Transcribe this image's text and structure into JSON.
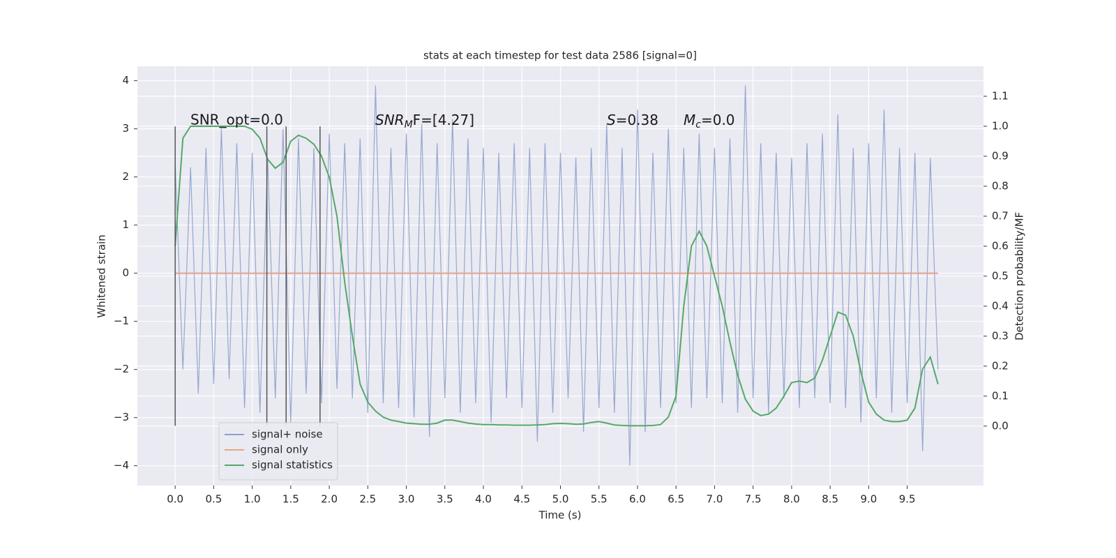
{
  "chart_data": {
    "type": "line",
    "title": "stats at each timestep for test data 2586 [signal=0]",
    "xlabel": "Time (s)",
    "ylabel": "Whitened strain",
    "y2label": "Detection probability/MF",
    "xlim": [
      -0.49,
      10.49
    ],
    "ylim": [
      -4.41,
      4.3
    ],
    "y2lim": [
      -0.198,
      1.2
    ],
    "xticks": [
      {
        "value": 0,
        "label": "0.0"
      },
      {
        "value": 0.5,
        "label": "0.5"
      },
      {
        "value": 1,
        "label": "1.0"
      },
      {
        "value": 1.5,
        "label": "1.5"
      },
      {
        "value": 2,
        "label": "2.0"
      },
      {
        "value": 2.5,
        "label": "2.5"
      },
      {
        "value": 3,
        "label": "3.0"
      },
      {
        "value": 3.5,
        "label": "3.5"
      },
      {
        "value": 4,
        "label": "4.0"
      },
      {
        "value": 4.5,
        "label": "4.5"
      },
      {
        "value": 5,
        "label": "5.0"
      },
      {
        "value": 5.5,
        "label": "5.5"
      },
      {
        "value": 6,
        "label": "6.0"
      },
      {
        "value": 6.5,
        "label": "6.5"
      },
      {
        "value": 7,
        "label": "7.0"
      },
      {
        "value": 7.5,
        "label": "7.5"
      },
      {
        "value": 8,
        "label": "8.0"
      },
      {
        "value": 8.5,
        "label": "8.5"
      },
      {
        "value": 9,
        "label": "9.0"
      },
      {
        "value": 9.5,
        "label": "9.5"
      }
    ],
    "yticks": [
      {
        "value": -4,
        "label": "−4"
      },
      {
        "value": -3,
        "label": "−3"
      },
      {
        "value": -2,
        "label": "−2"
      },
      {
        "value": -1,
        "label": "−1"
      },
      0,
      1,
      2,
      3,
      4
    ],
    "y2ticks": [
      {
        "value": 0,
        "label": "0.0"
      },
      {
        "value": 0.1,
        "label": "0.1"
      },
      {
        "value": 0.2,
        "label": "0.2"
      },
      {
        "value": 0.3,
        "label": "0.3"
      },
      {
        "value": 0.4,
        "label": "0.4"
      },
      {
        "value": 0.5,
        "label": "0.5"
      },
      {
        "value": 0.6,
        "label": "0.6"
      },
      {
        "value": 0.7,
        "label": "0.7"
      },
      {
        "value": 0.8,
        "label": "0.8"
      },
      {
        "value": 0.9,
        "label": "0.9"
      },
      {
        "value": 1,
        "label": "1.0"
      },
      {
        "value": 1.1,
        "label": "1.1"
      }
    ],
    "grid": true,
    "legend": "lower left",
    "x": [
      0,
      0.1,
      0.2,
      0.3,
      0.4,
      0.5,
      0.6,
      0.7,
      0.8,
      0.9,
      1,
      1.1,
      1.2,
      1.3,
      1.4,
      1.5,
      1.6,
      1.7,
      1.8,
      1.9,
      2,
      2.1,
      2.2,
      2.3,
      2.4,
      2.5,
      2.6,
      2.7,
      2.8,
      2.9,
      3,
      3.1,
      3.2,
      3.3,
      3.4,
      3.5,
      3.6,
      3.7,
      3.8,
      3.9,
      4,
      4.1,
      4.2,
      4.3,
      4.4,
      4.5,
      4.6,
      4.7,
      4.8,
      4.9,
      5,
      5.1,
      5.2,
      5.3,
      5.4,
      5.5,
      5.6,
      5.7,
      5.8,
      5.9,
      6,
      6.1,
      6.2,
      6.3,
      6.4,
      6.5,
      6.6,
      6.7,
      6.8,
      6.9,
      7,
      7.1,
      7.2,
      7.3,
      7.4,
      7.5,
      7.6,
      7.7,
      7.8,
      7.9,
      8,
      8.1,
      8.2,
      8.3,
      8.4,
      8.5,
      8.6,
      8.7,
      8.8,
      8.9,
      9,
      9.1,
      9.2,
      9.3,
      9.4,
      9.5,
      9.6,
      9.7,
      9.8,
      9.9
    ],
    "series": [
      {
        "name": "signal+ noise",
        "color": "#8da0cb",
        "values": [
          2.3,
          -2.0,
          2.2,
          -2.5,
          2.6,
          -2.3,
          3.0,
          -2.2,
          2.7,
          -2.8,
          2.5,
          -2.9,
          2.4,
          -2.6,
          3.0,
          -3.1,
          2.8,
          -2.5,
          2.6,
          -2.7,
          2.9,
          -2.4,
          2.7,
          -2.6,
          2.8,
          -2.9,
          3.9,
          -2.7,
          2.6,
          -2.8,
          2.9,
          -3.0,
          3.1,
          -3.4,
          2.7,
          -2.6,
          3.2,
          -2.9,
          2.8,
          -2.7,
          2.6,
          -3.1,
          2.5,
          -2.6,
          2.7,
          -2.8,
          2.6,
          -3.5,
          2.7,
          -2.9,
          2.5,
          -2.6,
          2.4,
          -3.3,
          2.6,
          -2.8,
          3.1,
          -2.9,
          2.6,
          -4.0,
          3.4,
          -3.3,
          2.5,
          -2.8,
          3.0,
          -2.7,
          2.6,
          -2.8,
          2.9,
          -2.6,
          2.6,
          -2.7,
          2.8,
          -2.9,
          3.9,
          -2.6,
          2.7,
          -2.9,
          2.5,
          -2.6,
          2.4,
          -2.8,
          2.7,
          -2.6,
          2.9,
          -2.7,
          3.3,
          -2.8,
          2.6,
          -3.1,
          2.7,
          -2.6,
          3.4,
          -2.9,
          2.6,
          -2.7,
          2.5,
          -3.7,
          2.4,
          -2.0
        ]
      },
      {
        "name": "signal only",
        "color": "#e8a48a",
        "values": [
          0,
          0,
          0,
          0,
          0,
          0,
          0,
          0,
          0,
          0,
          0,
          0,
          0,
          0,
          0,
          0,
          0,
          0,
          0,
          0,
          0,
          0,
          0,
          0,
          0,
          0,
          0,
          0,
          0,
          0,
          0,
          0,
          0,
          0,
          0,
          0,
          0,
          0,
          0,
          0,
          0,
          0,
          0,
          0,
          0,
          0,
          0,
          0,
          0,
          0,
          0,
          0,
          0,
          0,
          0,
          0,
          0,
          0,
          0,
          0,
          0,
          0,
          0,
          0,
          0,
          0,
          0,
          0,
          0,
          0,
          0,
          0,
          0,
          0,
          0,
          0,
          0,
          0,
          0,
          0,
          0,
          0,
          0,
          0,
          0,
          0,
          0,
          0,
          0,
          0,
          0,
          0,
          0,
          0,
          0,
          0,
          0,
          0,
          0,
          0
        ]
      },
      {
        "name": "signal statistics",
        "color": "#55a868",
        "axis": "y2",
        "values": [
          0.6,
          0.96,
          1.0,
          1.0,
          1.0,
          1.0,
          1.0,
          1.0,
          1.0,
          1.0,
          0.99,
          0.96,
          0.89,
          0.86,
          0.88,
          0.95,
          0.97,
          0.96,
          0.94,
          0.9,
          0.83,
          0.7,
          0.48,
          0.3,
          0.14,
          0.08,
          0.05,
          0.03,
          0.02,
          0.015,
          0.01,
          0.008,
          0.006,
          0.006,
          0.01,
          0.02,
          0.02,
          0.015,
          0.01,
          0.007,
          0.005,
          0.005,
          0.004,
          0.004,
          0.003,
          0.003,
          0.003,
          0.004,
          0.005,
          0.008,
          0.009,
          0.008,
          0.006,
          0.007,
          0.012,
          0.015,
          0.01,
          0.004,
          0.002,
          0.001,
          0.001,
          0.001,
          0.002,
          0.005,
          0.03,
          0.1,
          0.4,
          0.6,
          0.65,
          0.6,
          0.5,
          0.4,
          0.28,
          0.17,
          0.09,
          0.05,
          0.035,
          0.04,
          0.06,
          0.1,
          0.145,
          0.15,
          0.145,
          0.16,
          0.22,
          0.3,
          0.38,
          0.37,
          0.3,
          0.18,
          0.08,
          0.04,
          0.02,
          0.015,
          0.015,
          0.02,
          0.06,
          0.19,
          0.23,
          0.14
        ]
      }
    ],
    "vlines": [
      0,
      1.19,
      1.44,
      1.88
    ],
    "vline_range": [
      -3.17,
      3.05
    ],
    "annotations": [
      {
        "text": "SNR_opt=0.0"
      },
      {
        "text": "SNR",
        "sub": "M",
        "rest": "F=[4.27]"
      },
      {
        "text": "S",
        "rest": "=0.38"
      },
      {
        "text": "M",
        "sub": "c",
        "rest": "=0.0"
      }
    ]
  }
}
